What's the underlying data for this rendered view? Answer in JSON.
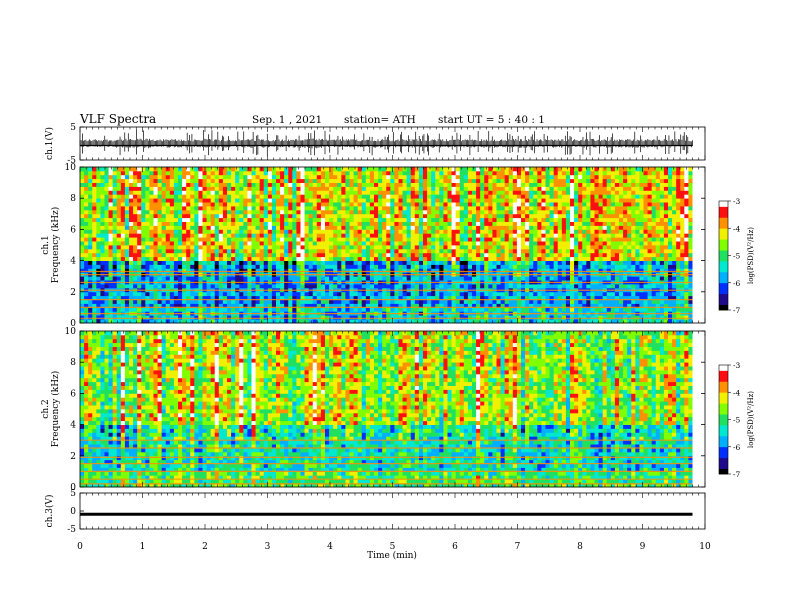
{
  "header": {
    "title": "VLF  Spectra",
    "date": "Sep. 1 , 2021",
    "station": "station= ATH",
    "start_ut": "start  UT  =   5 : 40 : 1"
  },
  "chart_data": [
    {
      "type": "line",
      "name": "ch1-waveform",
      "ylabel": "ch.1(V)",
      "ylim": [
        -5,
        5
      ],
      "yticks": [
        5,
        -5
      ],
      "x": [
        0,
        0.25,
        0.5,
        0.75,
        1,
        1.25,
        1.5,
        1.75,
        2,
        2.25,
        2.5,
        2.75,
        3,
        3.25,
        3.5,
        3.75,
        4,
        4.25,
        4.5,
        4.75,
        5,
        5.25,
        5.5,
        5.75,
        6,
        6.25,
        6.5,
        6.75,
        7,
        7.25,
        7.5,
        7.75,
        8,
        8.25,
        8.5,
        8.75,
        9,
        9.25,
        9.5,
        9.8
      ],
      "envelope_max": [
        3.5,
        3.8,
        3.6,
        4.0,
        4.5,
        3.7,
        3.9,
        3.6,
        4.2,
        3.8,
        3.7,
        4.1,
        3.9,
        3.6,
        4.0,
        4.4,
        3.8,
        3.7,
        3.9,
        4.0,
        3.6,
        3.8,
        4.1,
        3.7,
        3.9,
        3.8,
        4.2,
        3.6,
        4.0,
        3.9,
        3.7,
        4.1,
        3.8,
        3.9,
        3.6,
        4.0,
        3.8,
        3.7,
        3.9,
        3.6
      ],
      "envelope_min": [
        -3.2,
        -3.6,
        -3.4,
        -3.8,
        -4.6,
        -3.5,
        -3.7,
        -3.3,
        -4.0,
        -3.6,
        -3.5,
        -3.9,
        -3.7,
        -3.4,
        -3.8,
        -4.3,
        -3.6,
        -3.5,
        -3.7,
        -3.8,
        -3.4,
        -3.6,
        -3.9,
        -3.5,
        -3.7,
        -3.6,
        -4.0,
        -3.4,
        -3.8,
        -3.7,
        -3.5,
        -3.9,
        -3.6,
        -3.7,
        -3.4,
        -3.8,
        -3.6,
        -3.5,
        -3.7,
        -3.4
      ]
    },
    {
      "type": "heatmap",
      "name": "ch1-spectrogram",
      "ylabel": "ch.1\nFrequency  (kHz)",
      "ylim": [
        0,
        10
      ],
      "yticks": [
        0,
        2,
        4,
        6,
        8,
        10
      ],
      "xlim": [
        0,
        10
      ],
      "data_end_min": 9.8,
      "colorbar": {
        "label": "log(PSD)(V²/Hz)",
        "range": [
          -7,
          -3
        ],
        "ticks": [
          -3,
          -4,
          -5,
          -6,
          -7
        ]
      },
      "bands_khz": [
        0.3,
        0.6,
        1.0,
        1.5,
        2.1,
        2.6,
        3.1,
        3.3
      ],
      "approx_log_psd": {
        "low_band_0_1khz": -5.5,
        "mid_1_4khz": -5.8,
        "high_4_10khz": -4.3
      }
    },
    {
      "type": "heatmap",
      "name": "ch2-spectrogram",
      "ylabel": "ch.2\nFrequency  (kHz)",
      "ylim": [
        0,
        10
      ],
      "yticks": [
        0,
        2,
        4,
        6,
        8,
        10
      ],
      "xlim": [
        0,
        10
      ],
      "data_end_min": 9.8,
      "colorbar": {
        "label": "log(PSD)(V²/Hz)",
        "range": [
          -7,
          -3
        ],
        "ticks": [
          -3,
          -4,
          -5,
          -6,
          -7
        ]
      },
      "bands_khz": [
        0.2,
        0.5,
        1.0,
        1.5,
        1.9,
        2.5,
        3.0
      ],
      "approx_log_psd": {
        "low_band_0_1khz": -5.0,
        "mid_1_4khz": -5.4,
        "high_4_10khz": -4.6
      }
    },
    {
      "type": "line",
      "name": "ch3-waveform",
      "ylabel": "ch.3(V)",
      "ylim": [
        -5,
        5
      ],
      "yticks": [
        5,
        0,
        -5
      ],
      "x": [
        0,
        9.8
      ],
      "y": [
        -0.9,
        -0.9
      ],
      "xlabel": "Time  (min)",
      "xlim": [
        0,
        10
      ],
      "xticks": [
        0,
        1,
        2,
        3,
        4,
        5,
        6,
        7,
        8,
        9,
        10
      ]
    }
  ],
  "colors": {
    "colormap": [
      "#000000",
      "#1f0a8a",
      "#0030ff",
      "#00b0ff",
      "#00e8d0",
      "#20e060",
      "#80ff00",
      "#f0f000",
      "#ff9000",
      "#ff1010",
      "#ffffff"
    ],
    "background": "#ffffff",
    "axis": "#000000"
  }
}
